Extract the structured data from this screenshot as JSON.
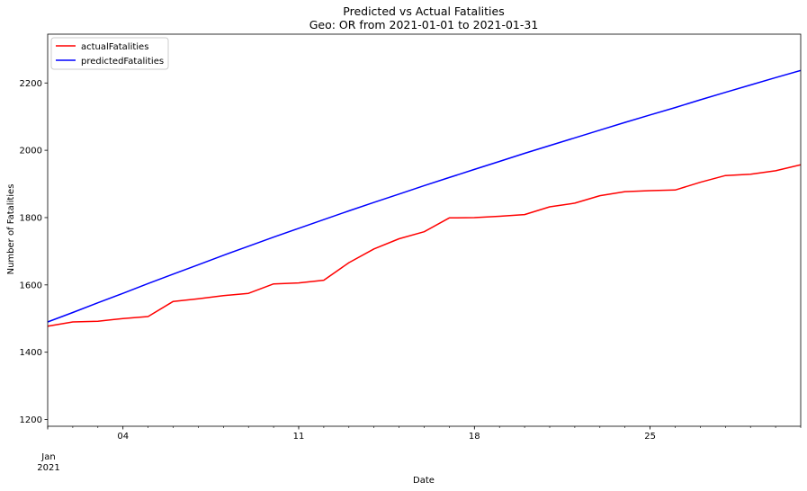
{
  "chart_data": {
    "type": "line",
    "title": "Predicted vs Actual Fatalities",
    "subtitle": "Geo: OR from 2021-01-01 to 2021-01-31",
    "xlabel": "Date",
    "ylabel": "Number of Fatalities",
    "x": [
      "2021-01-01",
      "2021-01-02",
      "2021-01-03",
      "2021-01-04",
      "2021-01-05",
      "2021-01-06",
      "2021-01-07",
      "2021-01-08",
      "2021-01-09",
      "2021-01-10",
      "2021-01-11",
      "2021-01-12",
      "2021-01-13",
      "2021-01-14",
      "2021-01-15",
      "2021-01-16",
      "2021-01-17",
      "2021-01-18",
      "2021-01-19",
      "2021-01-20",
      "2021-01-21",
      "2021-01-22",
      "2021-01-23",
      "2021-01-24",
      "2021-01-25",
      "2021-01-26",
      "2021-01-27",
      "2021-01-28",
      "2021-01-29",
      "2021-01-30",
      "2021-01-31"
    ],
    "xlim": [
      "2021-01-01",
      "2021-01-31"
    ],
    "xticks": [
      {
        "date": "2021-01-04",
        "label": "04"
      },
      {
        "date": "2021-01-11",
        "label": "11"
      },
      {
        "date": "2021-01-18",
        "label": "18"
      },
      {
        "date": "2021-01-25",
        "label": "25"
      }
    ],
    "x_start_label": "Jan",
    "x_year_label": "2021",
    "ylim": [
      1180,
      2345
    ],
    "yticks": [
      1200,
      1400,
      1600,
      1800,
      2000,
      2200
    ],
    "grid": false,
    "legend": "top-left",
    "series": [
      {
        "name": "actualFatalities",
        "color": "#ff0000",
        "values": [
          1477,
          1490,
          1492,
          1500,
          1506,
          1551,
          1559,
          1568,
          1575,
          1603,
          1606,
          1614,
          1666,
          1707,
          1737,
          1758,
          1799,
          1800,
          1804,
          1809,
          1832,
          1843,
          1865,
          1877,
          1880,
          1882,
          1905,
          1925,
          1929,
          1939,
          1957
        ]
      },
      {
        "name": "predictedFatalities",
        "color": "#0000ff",
        "values": [
          1490,
          1518,
          1547,
          1575,
          1604,
          1632,
          1660,
          1688,
          1715,
          1742,
          1768,
          1794,
          1820,
          1845,
          1870,
          1895,
          1919,
          1943,
          1967,
          1991,
          2014,
          2037,
          2060,
          2083,
          2105,
          2127,
          2150,
          2172,
          2194,
          2216,
          2237
        ]
      }
    ]
  }
}
